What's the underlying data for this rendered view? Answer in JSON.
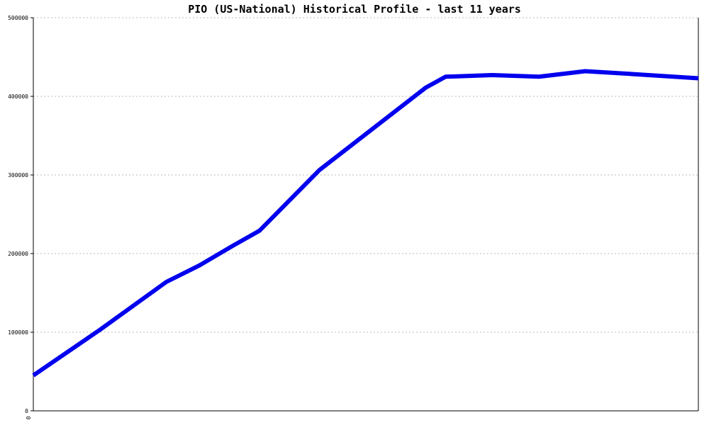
{
  "chart_data": {
    "type": "line",
    "title": "PIO (US-National) Historical Profile - last 11 years",
    "xlabel": "",
    "ylabel": "",
    "ylim": [
      0,
      500000
    ],
    "yticks": [
      0,
      100000,
      200000,
      300000,
      400000,
      500000
    ],
    "ytick_labels": [
      "0",
      "100000",
      "200000",
      "300000",
      "400000",
      "500000"
    ],
    "xtick_labels": [
      "0"
    ],
    "grid": true,
    "x": [
      0,
      0.1,
      0.2,
      0.25,
      0.3,
      0.34,
      0.43,
      0.5,
      0.59,
      0.62,
      0.69,
      0.76,
      0.83,
      0.87,
      1.0
    ],
    "series": [
      {
        "color": "#0000ee",
        "values": [
          45000,
          103000,
          164000,
          185000,
          210000,
          229000,
          306000,
          352000,
          411000,
          425000,
          427000,
          425000,
          432000,
          430000,
          423000
        ]
      }
    ]
  }
}
